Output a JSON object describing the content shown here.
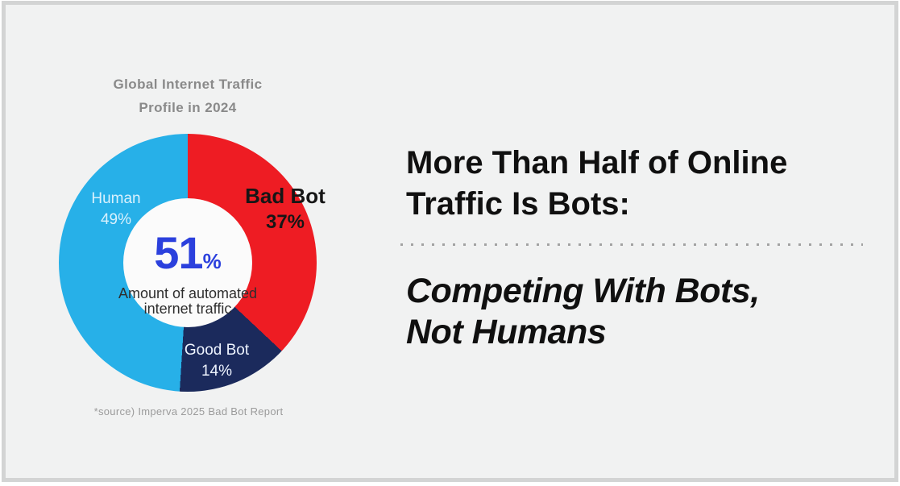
{
  "page": {
    "background": "#f1f2f2",
    "frame_border_color": "#d3d4d4"
  },
  "chart_data": {
    "type": "pie",
    "subtype": "donut",
    "title_line1": "Global Internet Traffic",
    "title_line2": "Profile in 2024",
    "start_angle_deg": 0,
    "direction": "clockwise",
    "segments": [
      {
        "label": "Bad Bot",
        "value_pct": 37,
        "display_pct": "37%",
        "color": "#ee1c23",
        "label_color": "#161616"
      },
      {
        "label": "Good Bot",
        "value_pct": 14,
        "display_pct": "14%",
        "color": "#1b2a5c",
        "label_color": "#eef4ff"
      },
      {
        "label": "Human",
        "value_pct": 49,
        "display_pct": "49%",
        "color": "#27b0e8",
        "label_color": "#d9f1fd"
      }
    ],
    "center": {
      "value": "51",
      "unit": "%",
      "value_color": "#2b40dd",
      "caption_line1": "Amount of automated",
      "caption_line2": "internet traffic"
    },
    "source": "*source) Imperva 2025 Bad Bot Report"
  },
  "headline": {
    "line1": "More Than Half of Online",
    "line2": "Traffic Is Bots:",
    "sub_line1": "Competing With Bots,",
    "sub_line2": "Not Humans"
  }
}
